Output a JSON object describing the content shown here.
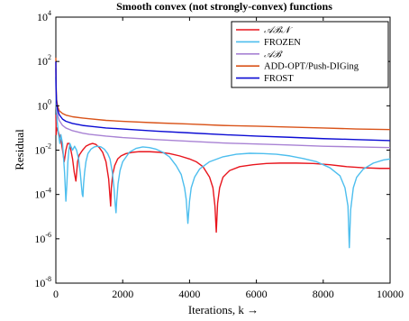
{
  "chart_data": {
    "type": "line",
    "title": "Smooth convex (not strongly-convex) functions",
    "xlabel": "Iterations, k →",
    "ylabel": "Residual",
    "x_scale": "linear",
    "y_scale": "log",
    "xlim": [
      0,
      10000
    ],
    "ylim": [
      1e-08,
      10000.0
    ],
    "x_ticks": [
      0,
      2000,
      4000,
      6000,
      8000,
      10000
    ],
    "x_tick_labels": [
      "0",
      "2000",
      "4000",
      "6000",
      "8000",
      "10000"
    ],
    "y_ticks": [
      1e-08,
      1e-06,
      0.0001,
      0.01,
      1.0,
      100.0,
      10000.0
    ],
    "y_tick_labels": [
      {
        "base": "10",
        "exp": "-8"
      },
      {
        "base": "10",
        "exp": "-6"
      },
      {
        "base": "10",
        "exp": "-4"
      },
      {
        "base": "10",
        "exp": "-2"
      },
      {
        "base": "10",
        "exp": "0"
      },
      {
        "base": "10",
        "exp": "2"
      },
      {
        "base": "10",
        "exp": "4"
      }
    ],
    "grid": false,
    "legend_position": "top-right",
    "series": [
      {
        "name": "𝒜ℬ𝒩",
        "color": "#e8141c",
        "x": [
          0,
          10,
          30,
          60,
          100,
          150,
          200,
          250,
          300,
          350,
          400,
          450,
          500,
          550,
          600,
          650,
          700,
          800,
          900,
          1000,
          1100,
          1200,
          1300,
          1400,
          1500,
          1580,
          1640,
          1660,
          1700,
          1760,
          1850,
          1950,
          2100,
          2300,
          2500,
          2800,
          3100,
          3400,
          3700,
          4000,
          4200,
          4400,
          4600,
          4700,
          4760,
          4800,
          4840,
          4900,
          5000,
          5200,
          5500,
          5900,
          6300,
          6700,
          7200,
          7700,
          8200,
          8700,
          9200,
          9700,
          10000
        ],
        "y": [
          0.4,
          0.05,
          0.1,
          0.08,
          0.05,
          0.03,
          0.01,
          0.003,
          0.01,
          0.02,
          0.02,
          0.01,
          0.004,
          0.001,
          0.0004,
          0.003,
          0.006,
          0.01,
          0.015,
          0.018,
          0.02,
          0.018,
          0.013,
          0.008,
          0.003,
          0.0005,
          3e-05,
          0.0002,
          0.0008,
          0.002,
          0.004,
          0.0055,
          0.007,
          0.008,
          0.0085,
          0.0085,
          0.008,
          0.007,
          0.0055,
          0.004,
          0.003,
          0.0018,
          0.0006,
          0.0002,
          3e-05,
          2e-06,
          4e-05,
          0.0002,
          0.0006,
          0.0012,
          0.0018,
          0.0022,
          0.0025,
          0.0026,
          0.0026,
          0.0025,
          0.0022,
          0.0018,
          0.0016,
          0.0015,
          0.0015
        ]
      },
      {
        "name": "FROZEN",
        "color": "#4dbeee",
        "x": [
          0,
          10,
          40,
          80,
          120,
          150,
          200,
          260,
          300,
          330,
          360,
          390,
          420,
          450,
          500,
          560,
          620,
          680,
          730,
          760,
          790,
          810,
          830,
          860,
          900,
          960,
          1050,
          1150,
          1250,
          1350,
          1450,
          1550,
          1620,
          1690,
          1740,
          1780,
          1800,
          1820,
          1860,
          1920,
          2000,
          2200,
          2400,
          2600,
          2800,
          3000,
          3200,
          3400,
          3600,
          3750,
          3850,
          3900,
          3950,
          4000,
          4050,
          4150,
          4300,
          4600,
          5000,
          5400,
          5800,
          6200,
          6600,
          7000,
          7400,
          7800,
          8200,
          8500,
          8650,
          8740,
          8780,
          8820,
          8900,
          9000,
          9200,
          9500,
          9800,
          10000
        ],
        "y": [
          20,
          1,
          0.2,
          0.05,
          0.02,
          0.05,
          0.02,
          0.001,
          5e-05,
          0.0003,
          0.003,
          0.01,
          0.02,
          0.015,
          0.01,
          0.015,
          0.01,
          0.004,
          0.001,
          0.0003,
          0.0001,
          8e-05,
          0.0003,
          0.001,
          0.003,
          0.007,
          0.011,
          0.014,
          0.015,
          0.014,
          0.011,
          0.007,
          0.004,
          0.001,
          0.0002,
          3e-05,
          1.5e-05,
          5e-05,
          0.0003,
          0.0012,
          0.003,
          0.008,
          0.012,
          0.014,
          0.013,
          0.011,
          0.008,
          0.005,
          0.002,
          0.0008,
          0.0002,
          6e-05,
          5e-06,
          5e-05,
          0.0002,
          0.0006,
          0.0014,
          0.003,
          0.005,
          0.0065,
          0.0072,
          0.007,
          0.0065,
          0.0055,
          0.0042,
          0.003,
          0.0016,
          0.0007,
          0.0002,
          3e-05,
          4e-07,
          2e-05,
          0.0002,
          0.0006,
          0.0014,
          0.0026,
          0.0036,
          0.004
        ]
      },
      {
        "name": "𝒜ℬ",
        "color": "#a882d4",
        "x": [
          0,
          5,
          20,
          50,
          100,
          200,
          300,
          500,
          800,
          1000,
          1500,
          2000,
          3000,
          4000,
          5000,
          6000,
          7000,
          8000,
          9000,
          10000
        ],
        "y": [
          50,
          5,
          1,
          0.4,
          0.22,
          0.13,
          0.1,
          0.075,
          0.058,
          0.052,
          0.043,
          0.037,
          0.03,
          0.025,
          0.021,
          0.019,
          0.017,
          0.015,
          0.014,
          0.013
        ]
      },
      {
        "name": "ADD-OPT/Push-DIGing",
        "color": "#d95319",
        "x": [
          0,
          5,
          20,
          50,
          100,
          200,
          300,
          500,
          800,
          1000,
          1500,
          2000,
          3000,
          4000,
          5000,
          6000,
          7000,
          8000,
          9000,
          10000
        ],
        "y": [
          150,
          10,
          2,
          1,
          0.6,
          0.45,
          0.38,
          0.32,
          0.28,
          0.26,
          0.22,
          0.2,
          0.17,
          0.15,
          0.13,
          0.12,
          0.11,
          0.1,
          0.09,
          0.085
        ]
      },
      {
        "name": "FROST",
        "color": "#0b0bd4",
        "x": [
          0,
          5,
          20,
          50,
          100,
          200,
          300,
          500,
          800,
          1000,
          1500,
          2000,
          3000,
          4000,
          5000,
          6000,
          7000,
          8000,
          9000,
          10000
        ],
        "y": [
          100,
          8,
          1.5,
          0.7,
          0.4,
          0.25,
          0.2,
          0.16,
          0.13,
          0.12,
          0.1,
          0.09,
          0.072,
          0.06,
          0.05,
          0.043,
          0.038,
          0.033,
          0.03,
          0.027
        ]
      }
    ]
  }
}
